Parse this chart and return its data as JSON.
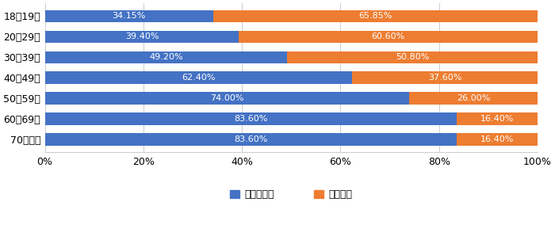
{
  "categories": [
    "18～19歳",
    "20～29歳",
    "30～39歳",
    "40～49歳",
    "50～59歳",
    "60～69歳",
    "70歳以上"
  ],
  "know": [
    34.15,
    39.4,
    49.2,
    62.4,
    74.0,
    83.6,
    83.6
  ],
  "dont_know": [
    65.85,
    60.6,
    50.8,
    37.6,
    26.0,
    16.4,
    16.4
  ],
  "know_labels": [
    "34.15%",
    "39.40%",
    "49.20%",
    "62.40%",
    "74.00%",
    "83.60%",
    "83.60%"
  ],
  "dont_know_labels": [
    "65.85%",
    "60.60%",
    "50.80%",
    "37.60%",
    "26.00%",
    "16.40%",
    "16.40%"
  ],
  "color_know": "#4472C4",
  "color_dont_know": "#ED7D31",
  "legend_know": "知っている",
  "legend_dont_know": "知らない",
  "background_color": "#FFFFFF",
  "xlim": [
    0,
    100
  ],
  "xtick_labels": [
    "0%",
    "20%",
    "40%",
    "60%",
    "80%",
    "100%"
  ],
  "xtick_values": [
    0,
    20,
    40,
    60,
    80,
    100
  ],
  "text_fontsize": 8.0,
  "label_fontsize": 9,
  "legend_fontsize": 9,
  "bar_height": 0.6
}
